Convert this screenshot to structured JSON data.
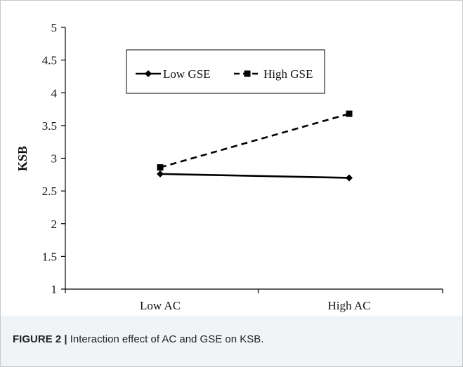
{
  "caption": {
    "label": "FIGURE 2 |",
    "text": " Interaction effect of AC and GSE on KSB."
  },
  "chart_data": {
    "type": "line",
    "title": "",
    "xlabel": "",
    "ylabel": "KSB",
    "categories": [
      "Low AC",
      "High AC"
    ],
    "ylim": [
      1,
      5
    ],
    "yticks": [
      "1",
      "1.5",
      "2",
      "2.5",
      "3",
      "3.5",
      "4",
      "4.5",
      "5"
    ],
    "grid": false,
    "legend_position": "top-left",
    "series": [
      {
        "name": "Low GSE",
        "values": [
          2.76,
          2.7
        ],
        "line": "solid",
        "marker": "diamond",
        "color": "#000000"
      },
      {
        "name": "High GSE",
        "values": [
          2.86,
          3.68
        ],
        "line": "dashed",
        "marker": "square",
        "color": "#000000"
      }
    ]
  }
}
